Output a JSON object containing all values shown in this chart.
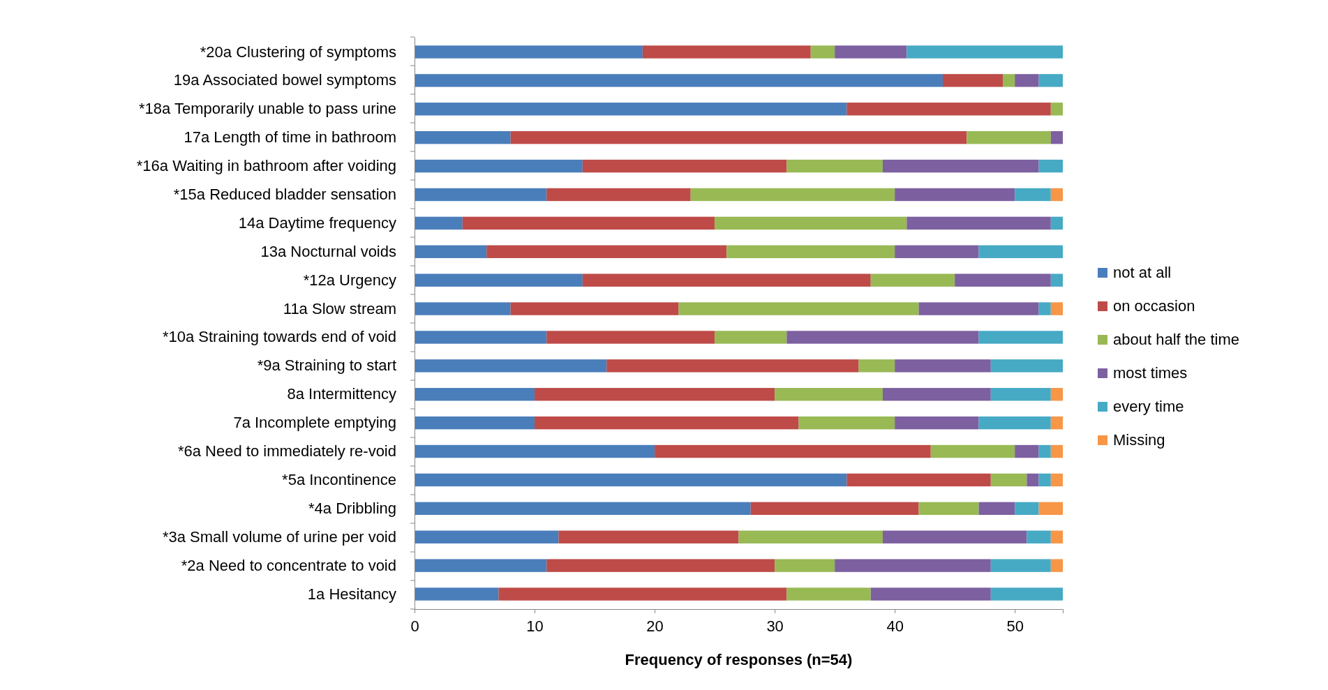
{
  "chart_data": {
    "type": "bar",
    "orientation": "horizontal",
    "stacked": true,
    "xlabel": "Frequency of responses (n=54)",
    "xlim": [
      0,
      54
    ],
    "xticks": [
      0,
      10,
      20,
      30,
      40,
      50
    ],
    "grid": false,
    "legend": "right",
    "categories": [
      "*20a Clustering of symptoms",
      "19a Associated bowel symptoms",
      "*18a Temporarily unable to pass urine",
      "17a Length of time in bathroom",
      "*16a Waiting in bathroom after voiding",
      "*15a Reduced bladder sensation",
      "14a Daytime frequency",
      "13a Nocturnal voids",
      "*12a Urgency",
      "11a Slow stream",
      "*10a Straining towards end of void",
      "*9a Straining to start",
      "8a Intermittency",
      "7a Incomplete emptying",
      "*6a Need to immediately re-void",
      "*5a Incontinence",
      "*4a Dribbling",
      "*3a Small volume of urine per void",
      "*2a Need to concentrate to void",
      "1a Hesitancy"
    ],
    "series": [
      {
        "name": "not at all",
        "color": "#4a7ebb",
        "values": [
          19,
          44,
          36,
          8,
          14,
          11,
          4,
          6,
          14,
          8,
          11,
          16,
          10,
          10,
          20,
          36,
          28,
          12,
          11,
          7
        ]
      },
      {
        "name": "on occasion",
        "color": "#be4b48",
        "values": [
          14,
          5,
          17,
          38,
          17,
          12,
          21,
          20,
          24,
          14,
          14,
          21,
          20,
          22,
          23,
          12,
          14,
          15,
          19,
          24
        ]
      },
      {
        "name": "about half the time",
        "color": "#98b954",
        "values": [
          2,
          1,
          1,
          7,
          8,
          17,
          16,
          14,
          7,
          20,
          6,
          3,
          9,
          8,
          7,
          3,
          5,
          12,
          5,
          7
        ]
      },
      {
        "name": "most times",
        "color": "#7d60a0",
        "values": [
          6,
          2,
          0,
          1,
          13,
          10,
          12,
          7,
          8,
          10,
          16,
          8,
          9,
          7,
          2,
          1,
          3,
          12,
          13,
          10
        ]
      },
      {
        "name": "every time",
        "color": "#46aac5",
        "values": [
          13,
          2,
          0,
          0,
          2,
          3,
          1,
          7,
          1,
          1,
          7,
          6,
          5,
          6,
          1,
          1,
          2,
          2,
          5,
          6
        ]
      },
      {
        "name": "Missing",
        "color": "#f79646",
        "values": [
          0,
          0,
          0,
          0,
          0,
          1,
          0,
          0,
          0,
          1,
          0,
          0,
          1,
          1,
          1,
          1,
          2,
          1,
          1,
          0
        ]
      }
    ]
  }
}
